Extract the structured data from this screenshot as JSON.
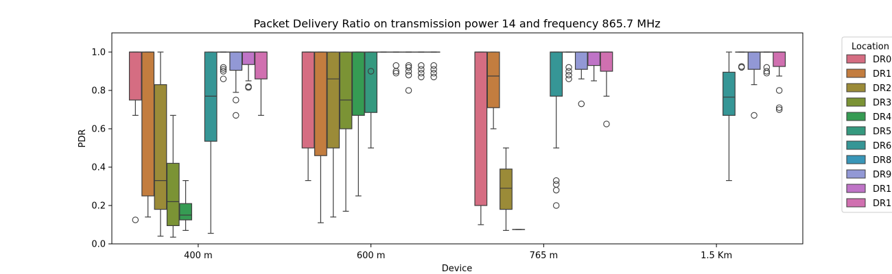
{
  "chart_data": {
    "type": "box",
    "title": "Packet Delivery Ratio on transmission power 14 and frequency 865.7 MHz",
    "xlabel": "Device",
    "ylabel": "PDR",
    "ylim": [
      0,
      1.1
    ],
    "yticks": [
      "0.0",
      "0.2",
      "0.4",
      "0.6",
      "0.8",
      "1.0"
    ],
    "categories": [
      "400 m",
      "600 m",
      "765 m",
      "1.5 Km"
    ],
    "grid": false,
    "legend": {
      "title": "Location",
      "placement": "outside-right",
      "entries": [
        "DR0",
        "DR1",
        "DR2",
        "DR3",
        "DR4",
        "DR5",
        "DR6",
        "DR8",
        "DR9",
        "DR1",
        "DR1"
      ]
    },
    "series": [
      {
        "name": "DR0",
        "color": "#e8768d",
        "boxes": [
          {
            "q1": 0.75,
            "median": 1.0,
            "q3": 1.0,
            "low": 0.67,
            "high": 1.0,
            "outliers": [
              0.125
            ]
          },
          {
            "q1": 0.5,
            "median": 1.0,
            "q3": 1.0,
            "low": 0.33,
            "high": 1.0,
            "outliers": []
          },
          {
            "q1": 0.2,
            "median": 1.0,
            "q3": 1.0,
            "low": 0.1,
            "high": 1.0,
            "outliers": []
          },
          null
        ]
      },
      {
        "name": "DR1",
        "color": "#d48844",
        "boxes": [
          {
            "q1": 0.25,
            "median": 1.0,
            "q3": 1.0,
            "low": 0.14,
            "high": 1.0,
            "outliers": []
          },
          {
            "q1": 0.46,
            "median": 1.0,
            "q3": 1.0,
            "low": 0.11,
            "high": 1.0,
            "outliers": []
          },
          {
            "q1": 0.71,
            "median": 0.875,
            "q3": 1.0,
            "low": 0.6,
            "high": 1.0,
            "outliers": []
          },
          null
        ]
      },
      {
        "name": "DR2",
        "color": "#a9973d",
        "boxes": [
          {
            "q1": 0.18,
            "median": 0.33,
            "q3": 0.83,
            "low": 0.04,
            "high": 1.0,
            "outliers": []
          },
          {
            "q1": 0.5,
            "median": 0.86,
            "q3": 1.0,
            "low": 0.14,
            "high": 1.0,
            "outliers": []
          },
          {
            "q1": 0.18,
            "median": 0.29,
            "q3": 0.39,
            "low": 0.07,
            "high": 0.5,
            "outliers": []
          },
          null
        ]
      },
      {
        "name": "DR3",
        "color": "#86a03a",
        "boxes": [
          {
            "q1": 0.095,
            "median": 0.22,
            "q3": 0.42,
            "low": 0.035,
            "high": 0.67,
            "outliers": []
          },
          {
            "q1": 0.6,
            "median": 0.75,
            "q3": 1.0,
            "low": 0.17,
            "high": 1.0,
            "outliers": []
          },
          {
            "q1": 0.075,
            "median": 0.075,
            "q3": 0.075,
            "low": 0.075,
            "high": 0.075,
            "outliers": []
          },
          null
        ]
      },
      {
        "name": "DR4",
        "color": "#3ba85a",
        "boxes": [
          {
            "q1": 0.125,
            "median": 0.15,
            "q3": 0.21,
            "low": 0.07,
            "high": 0.33,
            "outliers": []
          },
          {
            "q1": 0.67,
            "median": 1.0,
            "q3": 1.0,
            "low": 0.25,
            "high": 1.0,
            "outliers": []
          },
          null,
          null
        ]
      },
      {
        "name": "DR5",
        "color": "#3aa68a",
        "boxes": [
          null,
          {
            "q1": 0.685,
            "median": 1.0,
            "q3": 1.0,
            "low": 0.5,
            "high": 1.0,
            "outliers": [
              0.9
            ]
          },
          null,
          null
        ]
      },
      {
        "name": "DR6",
        "color": "#3ba3a3",
        "boxes": [
          {
            "q1": 0.535,
            "median": 0.77,
            "q3": 1.0,
            "low": 0.055,
            "high": 1.0,
            "outliers": []
          },
          {
            "q1": 1.0,
            "median": 1.0,
            "q3": 1.0,
            "low": 1.0,
            "high": 1.0,
            "outliers": []
          },
          {
            "q1": 0.77,
            "median": 1.0,
            "q3": 1.0,
            "low": 0.5,
            "high": 1.0,
            "outliers": [
              0.2,
              0.28,
              0.31,
              0.33
            ]
          },
          {
            "q1": 0.67,
            "median": 0.765,
            "q3": 0.895,
            "low": 0.33,
            "high": 1.0,
            "outliers": []
          }
        ]
      },
      {
        "name": "DR8",
        "color": "#3ea3c8",
        "boxes": [
          {
            "q1": 1.0,
            "median": 1.0,
            "q3": 1.0,
            "low": 1.0,
            "high": 1.0,
            "outliers": [
              0.86,
              0.9,
              0.91,
              0.92
            ]
          },
          {
            "q1": 1.0,
            "median": 1.0,
            "q3": 1.0,
            "low": 1.0,
            "high": 1.0,
            "outliers": [
              0.89,
              0.9,
              0.93
            ]
          },
          {
            "q1": 1.0,
            "median": 1.0,
            "q3": 1.0,
            "low": 1.0,
            "high": 1.0,
            "outliers": [
              0.86,
              0.88,
              0.9,
              0.92
            ]
          },
          {
            "q1": 1.0,
            "median": 1.0,
            "q3": 1.0,
            "low": 1.0,
            "high": 1.0,
            "outliers": [
              0.92,
              0.925
            ]
          }
        ]
      },
      {
        "name": "DR9",
        "color": "#9fa5e8",
        "boxes": [
          {
            "q1": 0.905,
            "median": 1.0,
            "q3": 1.0,
            "low": 0.79,
            "high": 1.0,
            "outliers": [
              0.67,
              0.75
            ]
          },
          {
            "q1": 1.0,
            "median": 1.0,
            "q3": 1.0,
            "low": 1.0,
            "high": 1.0,
            "outliers": [
              0.8,
              0.88,
              0.9,
              0.92,
              0.93
            ]
          },
          {
            "q1": 0.91,
            "median": 1.0,
            "q3": 1.0,
            "low": 0.86,
            "high": 1.0,
            "outliers": [
              0.73
            ]
          },
          {
            "q1": 0.91,
            "median": 1.0,
            "q3": 1.0,
            "low": 0.83,
            "high": 1.0,
            "outliers": [
              0.67
            ]
          }
        ]
      },
      {
        "name": "DR1",
        "color": "#d07ed8",
        "boxes": [
          {
            "q1": 0.935,
            "median": 1.0,
            "q3": 1.0,
            "low": 0.85,
            "high": 1.0,
            "outliers": [
              0.82,
              0.815
            ]
          },
          {
            "q1": 1.0,
            "median": 1.0,
            "q3": 1.0,
            "low": 1.0,
            "high": 1.0,
            "outliers": [
              0.87,
              0.89,
              0.91,
              0.93
            ]
          },
          {
            "q1": 0.93,
            "median": 1.0,
            "q3": 1.0,
            "low": 0.85,
            "high": 1.0,
            "outliers": []
          },
          {
            "q1": 1.0,
            "median": 1.0,
            "q3": 1.0,
            "low": 1.0,
            "high": 1.0,
            "outliers": [
              0.89,
              0.9,
              0.92
            ]
          }
        ]
      },
      {
        "name": "DR1",
        "color": "#e27abf",
        "boxes": [
          {
            "q1": 0.86,
            "median": 1.0,
            "q3": 1.0,
            "low": 0.67,
            "high": 1.0,
            "outliers": []
          },
          {
            "q1": 1.0,
            "median": 1.0,
            "q3": 1.0,
            "low": 1.0,
            "high": 1.0,
            "outliers": [
              0.87,
              0.89,
              0.91,
              0.93
            ]
          },
          {
            "q1": 0.9,
            "median": 1.0,
            "q3": 1.0,
            "low": 0.77,
            "high": 1.0,
            "outliers": [
              0.625
            ]
          },
          {
            "q1": 0.925,
            "median": 1.0,
            "q3": 1.0,
            "low": 0.875,
            "high": 1.0,
            "outliers": [
              0.8,
              0.71,
              0.7
            ]
          }
        ]
      }
    ]
  }
}
